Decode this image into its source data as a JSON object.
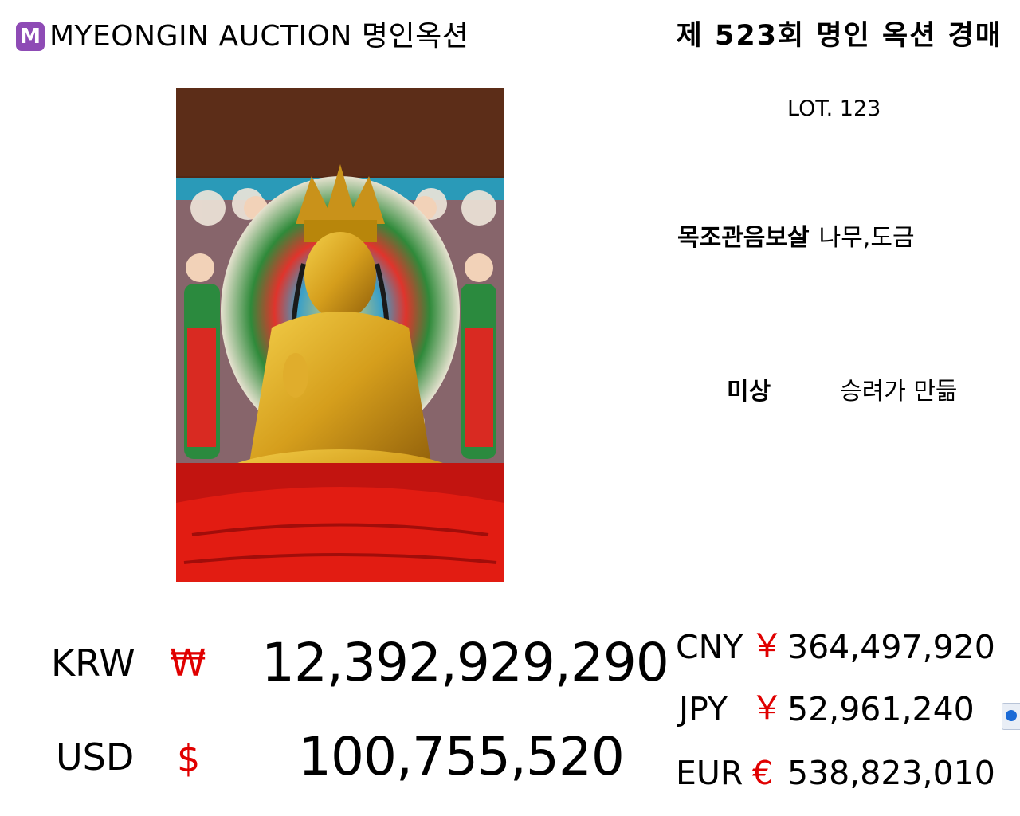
{
  "header": {
    "logo_letter": "M",
    "brand": "MYEONGIN AUCTION 명인옥션",
    "auction_title": "제 523회 명인 옥션 경매"
  },
  "lot": {
    "number": "LOT. 123",
    "name": "목조관음보살",
    "material": "나무,도금",
    "maker_label": "미상",
    "maker_value": "승려가 만듦"
  },
  "prices": {
    "krw": {
      "code": "KRW",
      "symbol": "₩",
      "amount": "12,392,929,290"
    },
    "usd": {
      "code": "USD",
      "symbol": "$",
      "amount": "100,755,520"
    },
    "cny": {
      "code": "CNY",
      "symbol": "￥",
      "amount": "364,497,920"
    },
    "jpy": {
      "code": "JPY",
      "symbol": "￥",
      "amount": "52,961,240"
    },
    "eur": {
      "code": "EUR",
      "symbol": "€",
      "amount": "538,823,010"
    }
  },
  "colors": {
    "brand_purple": "#8e4bb5",
    "currency_symbol_red": "#e00000"
  },
  "icons": {
    "logo": "logo-m-icon",
    "side_widget": "teamviewer-icon"
  }
}
